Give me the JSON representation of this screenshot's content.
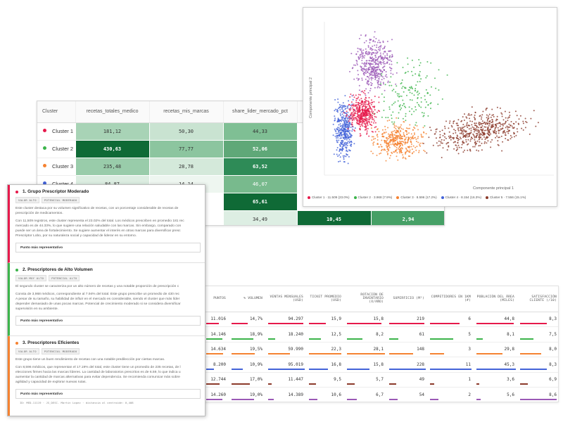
{
  "clusters": [
    {
      "name": "Cluster 1",
      "color": "#e6194b"
    },
    {
      "name": "Cluster 2",
      "color": "#3cb44b"
    },
    {
      "name": "Cluster 3",
      "color": "#f58231"
    },
    {
      "name": "Cluster 4",
      "color": "#4363d8"
    },
    {
      "name": "Cluster 5",
      "color": "#9b59b6"
    }
  ],
  "heatmap": {
    "col_name": "Cluster",
    "col_recetas": "recetas_totales_medico",
    "col_mis_marcas": "recetas_mis_marcas",
    "col_share": "share_lider_mercado_pct",
    "rows": [
      {
        "recetas": "181,12",
        "mis_marcas": "50,30",
        "share": "44,33",
        "c4": "",
        "c5": ""
      },
      {
        "recetas": "430,63",
        "mis_marcas": "77,77",
        "share": "52,06",
        "c4": "",
        "c5": ""
      },
      {
        "recetas": "235,48",
        "mis_marcas": "28,78",
        "share": "63,52",
        "c4": "",
        "c5": ""
      },
      {
        "recetas": "84,87",
        "mis_marcas": "14,14",
        "share": "46,07",
        "c4": "",
        "c5": ""
      },
      {
        "recetas": "",
        "mis_marcas": "",
        "share": "65,61",
        "c4": "",
        "c5": ""
      },
      {
        "recetas": "",
        "mis_marcas": "",
        "share": "34,49",
        "c4": "10,45",
        "c5": "2,94"
      }
    ]
  },
  "scatter": {
    "xlabel": "Componente principal 1",
    "ylabel": "Componente principal 2",
    "legend": [
      "Cluster 1 · 11.509 (23.0%)",
      "Cluster 2 · 3.968 (7.9%)",
      "Cluster 3 · 8.596 (17.2%)",
      "Cluster 4 · 8.154 (16.3%)",
      "Cluster 5 · 7.556 (15.1%)"
    ]
  },
  "metrics": {
    "headers": [
      "PUNTOS",
      "% VOLUMEN",
      "VENTAS MENSUALES (USD)",
      "TICKET PROMEDIO (USD)",
      "ROTACIÓN DE INVENTARIO (X/AÑO)",
      "SUPERFICIO (M²)",
      "COMPETIDORES EN 1KM (#)",
      "POBLACIÓN DEL ÁREA (MILES)",
      "SATISFACCIÓN CLIENTE (/10)"
    ],
    "rows": [
      {
        "color": "#e6194b",
        "cells": [
          "11.016",
          "14,7%",
          "94.297",
          "15,9",
          "15,8",
          "219",
          "6",
          "44,8",
          "8,3"
        ],
        "levels": [
          0.55,
          0.5,
          0.95,
          0.5,
          0.9,
          0.95,
          0.7,
          0.95,
          0.7
        ]
      },
      {
        "color": "#3cb44b",
        "cells": [
          "14.146",
          "18,9%",
          "18.240",
          "12,5",
          "8,2",
          "61",
          "5",
          "8,1",
          "7,5"
        ],
        "levels": [
          0.7,
          0.65,
          0.2,
          0.35,
          0.4,
          0.25,
          0.55,
          0.15,
          0.35
        ]
      },
      {
        "color": "#f58231",
        "cells": [
          "14.634",
          "19,5%",
          "59.990",
          "22,3",
          "28,1",
          "148",
          "3",
          "29,8",
          "8,0"
        ],
        "levels": [
          0.75,
          0.7,
          0.6,
          0.95,
          1.0,
          0.65,
          0.35,
          0.65,
          0.55
        ]
      },
      {
        "color": "#4363d8",
        "cells": [
          "8.200",
          "10,9%",
          "95.019",
          "16,8",
          "15,8",
          "228",
          "11",
          "45,3",
          "8,3"
        ],
        "levels": [
          0.35,
          0.35,
          1.0,
          0.55,
          0.6,
          1.0,
          1.0,
          1.0,
          0.7
        ]
      },
      {
        "color": "#8b3a2a",
        "cells": [
          "12.744",
          "17,0%",
          "11.447",
          "9,5",
          "5,7",
          "49",
          "1",
          "3,6",
          "6,9"
        ],
        "levels": [
          0.6,
          0.55,
          0.1,
          0.2,
          0.2,
          0.2,
          0.1,
          0.08,
          0.2
        ]
      },
      {
        "color": "#9b59b6",
        "cells": [
          "14.260",
          "19,0%",
          "14.389",
          "10,6",
          "6,7",
          "54",
          "2",
          "5,6",
          "8,6"
        ],
        "levels": [
          0.72,
          0.68,
          0.15,
          0.25,
          0.25,
          0.22,
          0.2,
          0.1,
          0.95
        ]
      }
    ]
  },
  "cards": [
    {
      "title": "1. Grupo Prescriptor Moderado",
      "color": "#e6194b",
      "badge1": "VALOR ALTO",
      "badge2": "POTENCIAL MODERADO",
      "p1a": "Este cluster destaca por su volumen significativo de recetas, con un porcentaje considerable de recetas de",
      "p1b": "prescripción de medicamentos.",
      "p2a": "Con 11,509 registros, este cluster representa el 23.02% del total. Los médicos prescriben en promedio 181 rec",
      "p2b": "mercado es de 44.33%, lo que sugiere una relación saludable con las marcas. Sin embargo, comparado con",
      "p2c": "puede ser un área de fortalecimiento. Se sugiere aumentar el interés en otras marcas para diversificar presc",
      "p2d": "Prescriptor Lobo, por su naturaleza social y capacidad de liderar en su entorno.",
      "rep": "Punto más representativo"
    },
    {
      "title": "2. Prescriptores de Alto Volumen",
      "color": "#3cb44b",
      "badge1": "VALOR MUY ALTO",
      "badge2": "POTENCIAL ALTO",
      "p1a": "El segundo cluster se caracteriza por un alto número de recetas y una notable proporción de prescripción c",
      "p2a": "Consta de 3,968 médicos, correspondiente al 7.94% del total. Este grupo prescribe un promedio de 430 rec",
      "p2b": "A pesar de su tamaño, su habilidad de influir en el mercado es considerable, siendo el cluster que más líder",
      "p2c": "depender demasiado de unas pocas marcas. Potencial de crecimiento moderado si se considera diversificar",
      "p2d": "supervisión en su ambiente.",
      "rep": "Punto más representativo"
    },
    {
      "title": "3. Prescriptores Eficientes",
      "color": "#f58231",
      "badge1": "VALOR ALTO",
      "badge2": "POTENCIAL MODERADO",
      "p1a": "Este grupo tiene un buen rendimiento de recetas con una notable predilección por ciertas marcas.",
      "p2a": "Con 8,596 médicos, que representan el 17.19% del total, este cluster tiene un promedio de 235 recetas, de l",
      "p2b": "elecciones firmes hacia las marcas líderes. La cantidad de laboratorios prescritos es de 6.59, lo que indica u",
      "p2c": "aumentar la cantidad de marcas alternativas para evitar dependencia. Se recomienda comunicar más sobre",
      "p2d": "agilidad y capacidad de explorar nuevas rutas.",
      "rep": "Punto más representativo",
      "rep_sub": "ID: MED-11119 · JS_DESC. Martin Lopez · distancia al centroide: 0,408"
    }
  ]
}
